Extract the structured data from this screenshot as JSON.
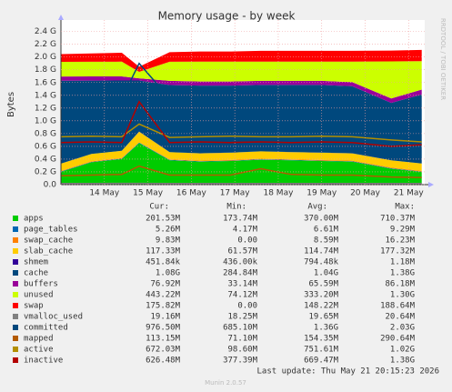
{
  "chart_data": {
    "type": "stacked-area",
    "title": "Memory usage - by week",
    "y_label": "Bytes",
    "side_text": "RRDTOOL / TOBI OETIKER",
    "footer": "Last update: Thu May 21 20:15:23 2026",
    "version": "Munin 2.0.57",
    "grid": true,
    "x": [
      13.0,
      13.7,
      14.4,
      14.8,
      15.5,
      16.2,
      16.9,
      17.6,
      18.3,
      19.0,
      19.7,
      20.6,
      21.3
    ],
    "xlim": [
      13,
      21.37
    ],
    "xticks": [
      {
        "value": 14,
        "label": "14 May"
      },
      {
        "value": 15,
        "label": "15 May"
      },
      {
        "value": 16,
        "label": "16 May"
      },
      {
        "value": 17,
        "label": "17 May"
      },
      {
        "value": 18,
        "label": "18 May"
      },
      {
        "value": 19,
        "label": "19 May"
      },
      {
        "value": 20,
        "label": "20 May"
      },
      {
        "value": 21,
        "label": "21 May"
      }
    ],
    "ylim": [
      0,
      2580000000.0
    ],
    "yticks": [
      {
        "value": 0,
        "label": "0.0"
      },
      {
        "value": 200000000.0,
        "label": "0.2 G"
      },
      {
        "value": 400000000.0,
        "label": "0.4 G"
      },
      {
        "value": 600000000.0,
        "label": "0.6 G"
      },
      {
        "value": 800000000.0,
        "label": "0.8 G"
      },
      {
        "value": 1000000000.0,
        "label": "1.0 G"
      },
      {
        "value": 1200000000.0,
        "label": "1.2 G"
      },
      {
        "value": 1400000000.0,
        "label": "1.4 G"
      },
      {
        "value": 1600000000.0,
        "label": "1.6 G"
      },
      {
        "value": 1800000000.0,
        "label": "1.8 G"
      },
      {
        "value": 2000000000.0,
        "label": "2.0 G"
      },
      {
        "value": 2200000000.0,
        "label": "2.2 G"
      },
      {
        "value": 2400000000.0,
        "label": "2.4 G"
      }
    ],
    "stats_header": [
      "Cur:",
      "Min:",
      "Avg:",
      "Max:"
    ],
    "series": [
      {
        "name": "apps",
        "color": "#00cc00",
        "kind": "stack",
        "stats": [
          "201.53M",
          "173.74M",
          "370.00M",
          "710.37M"
        ],
        "values": [
          200000000.0,
          350000000.0,
          400000000.0,
          650000000.0,
          380000000.0,
          360000000.0,
          370000000.0,
          390000000.0,
          380000000.0,
          370000000.0,
          360000000.0,
          250000000.0,
          200000000.0
        ]
      },
      {
        "name": "page_tables",
        "color": "#0066b3",
        "kind": "stack",
        "stats": [
          "5.26M",
          "4.17M",
          "6.61M",
          "9.29M"
        ],
        "values": [
          6000000.0,
          6000000.0,
          7000000.0,
          9000000.0,
          7000000.0,
          7000000.0,
          7000000.0,
          7000000.0,
          7000000.0,
          7000000.0,
          7000000.0,
          6000000.0,
          5000000.0
        ]
      },
      {
        "name": "swap_cache",
        "color": "#ff8000",
        "kind": "stack",
        "stats": [
          "9.83M",
          "0.00",
          "8.59M",
          "16.23M"
        ],
        "values": [
          8000000.0,
          9000000.0,
          9000000.0,
          2000000.0,
          8000000.0,
          9000000.0,
          9000000.0,
          9000000.0,
          9000000.0,
          9000000.0,
          9000000.0,
          10000000.0,
          10000000.0
        ]
      },
      {
        "name": "slab_cache",
        "color": "#ffcc00",
        "kind": "stack",
        "stats": [
          "117.33M",
          "61.57M",
          "114.74M",
          "177.32M"
        ],
        "values": [
          115000000.0,
          115000000.0,
          115000000.0,
          170000000.0,
          115000000.0,
          115000000.0,
          115000000.0,
          115000000.0,
          115000000.0,
          115000000.0,
          115000000.0,
          115000000.0,
          117000000.0
        ]
      },
      {
        "name": "shmem",
        "color": "#330099",
        "kind": "stack",
        "stats": [
          "451.84k",
          "436.00k",
          "794.48k",
          "1.18M"
        ],
        "values": [
          800000.0,
          800000.0,
          800000.0,
          1000000.0,
          800000.0,
          800000.0,
          800000.0,
          800000.0,
          800000.0,
          800000.0,
          800000.0,
          500000.0,
          450000.0
        ]
      },
      {
        "name": "cache",
        "color": "#00487d",
        "kind": "stack",
        "stats": [
          "1.08G",
          "284.84M",
          "1.04G",
          "1.38G"
        ],
        "values": [
          1300000000.0,
          1150000000.0,
          1100000000.0,
          800000000.0,
          1050000000.0,
          1060000000.0,
          1050000000.0,
          1040000000.0,
          1050000000.0,
          1060000000.0,
          1050000000.0,
          900000000.0,
          1080000000.0
        ]
      },
      {
        "name": "buffers",
        "color": "#990099",
        "kind": "stack",
        "stats": [
          "76.92M",
          "33.14M",
          "65.59M",
          "86.18M"
        ],
        "values": [
          65000000.0,
          65000000.0,
          65000000.0,
          35000000.0,
          65000000.0,
          65000000.0,
          65000000.0,
          65000000.0,
          65000000.0,
          65000000.0,
          65000000.0,
          70000000.0,
          77000000.0
        ]
      },
      {
        "name": "unused",
        "color": "#ccff00",
        "kind": "stack",
        "stats": [
          "443.22M",
          "74.12M",
          "333.20M",
          "1.30G"
        ],
        "values": [
          230000000.0,
          230000000.0,
          230000000.0,
          100000000.0,
          300000000.0,
          310000000.0,
          310000000.0,
          300000000.0,
          300000000.0,
          300000000.0,
          320000000.0,
          580000000.0,
          445000000.0
        ]
      },
      {
        "name": "swap",
        "color": "#ff0000",
        "kind": "stack",
        "stats": [
          "175.82M",
          "0.00",
          "148.22M",
          "188.64M"
        ],
        "values": [
          120000000.0,
          130000000.0,
          140000000.0,
          80000000.0,
          150000000.0,
          160000000.0,
          160000000.0,
          170000000.0,
          170000000.0,
          170000000.0,
          170000000.0,
          170000000.0,
          176000000.0
        ]
      },
      {
        "name": "vmalloc_used",
        "color": "#808080",
        "kind": "line",
        "stats": [
          "19.16M",
          "18.25M",
          "19.65M",
          "20.64M"
        ],
        "values": [
          19000000.0,
          19000000.0,
          20000000.0,
          20000000.0,
          19000000.0,
          19000000.0,
          19000000.0,
          19000000.0,
          19000000.0,
          19000000.0,
          19000000.0,
          19000000.0,
          19000000.0
        ]
      },
      {
        "name": "committed",
        "color": "#00487d",
        "kind": "line",
        "stats": [
          "976.50M",
          "685.10M",
          "1.36G",
          "2.03G"
        ],
        "values": [
          1400000000.0,
          1300000000.0,
          1350000000.0,
          1900000000.0,
          1350000000.0,
          1300000000.0,
          1350000000.0,
          1400000000.0,
          1350000000.0,
          1300000000.0,
          1350000000.0,
          1100000000.0,
          980000000.0
        ]
      },
      {
        "name": "mapped",
        "color": "#b35a00",
        "kind": "line",
        "stats": [
          "113.15M",
          "71.10M",
          "154.35M",
          "290.64M"
        ],
        "values": [
          140000000.0,
          150000000.0,
          160000000.0,
          290000000.0,
          150000000.0,
          150000000.0,
          150000000.0,
          250000000.0,
          160000000.0,
          150000000.0,
          150000000.0,
          120000000.0,
          113000000.0
        ]
      },
      {
        "name": "active",
        "color": "#b38f00",
        "kind": "line",
        "stats": [
          "672.03M",
          "98.60M",
          "751.61M",
          "1.02G"
        ],
        "values": [
          750000000.0,
          760000000.0,
          750000000.0,
          950000000.0,
          740000000.0,
          750000000.0,
          760000000.0,
          750000000.0,
          750000000.0,
          760000000.0,
          750000000.0,
          700000000.0,
          670000000.0
        ]
      },
      {
        "name": "inactive",
        "color": "#b30000",
        "kind": "line",
        "stats": [
          "626.48M",
          "377.39M",
          "669.47M",
          "1.38G"
        ],
        "values": [
          660000000.0,
          670000000.0,
          660000000.0,
          1300000000.0,
          660000000.0,
          670000000.0,
          660000000.0,
          670000000.0,
          660000000.0,
          670000000.0,
          660000000.0,
          600000000.0,
          626000000.0
        ]
      }
    ]
  }
}
